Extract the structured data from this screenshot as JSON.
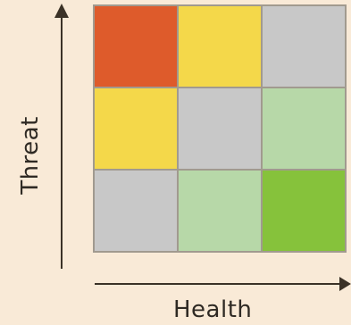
{
  "axes": {
    "x_label": "Health",
    "y_label": "Threat"
  },
  "matrix": {
    "rows": [
      [
        "#de5b2b",
        "#f4d84a",
        "#c8c8c8"
      ],
      [
        "#f4d84a",
        "#c8c8c8",
        "#b7d8a8"
      ],
      [
        "#c8c8c8",
        "#b7d8a8",
        "#86c23b"
      ]
    ]
  },
  "colors": {
    "background": "#f9ead7",
    "grid_border": "#a19a8f",
    "axis": "#3b3227"
  }
}
